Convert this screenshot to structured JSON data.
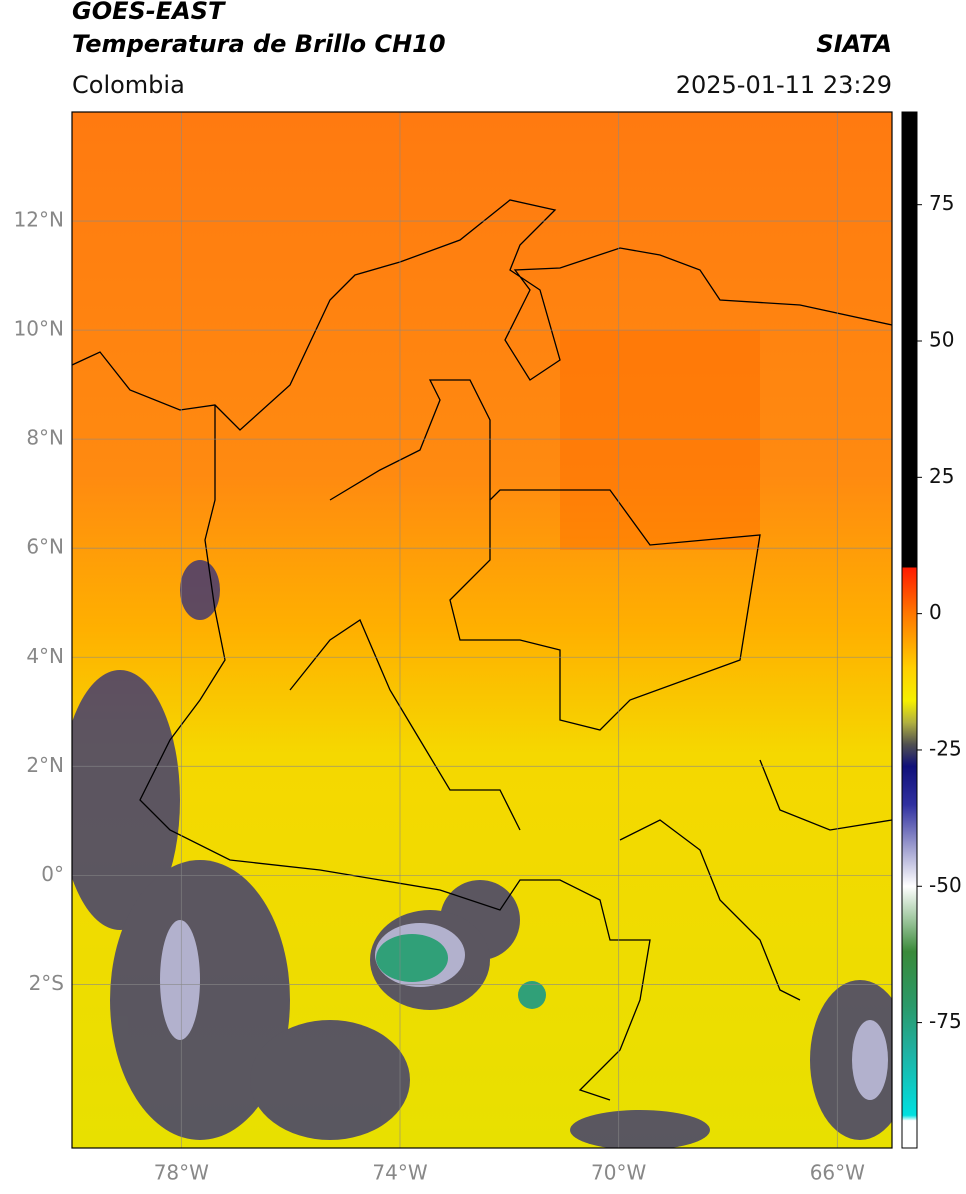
{
  "header": {
    "title": "GOES-EAST",
    "subtitle": "Temperatura de Brillo CH10",
    "source": "SIATA",
    "region": "Colombia",
    "datetime": "2025-01-11 23:29"
  },
  "map": {
    "xlim": [
      -80,
      -65
    ],
    "ylim": [
      -5,
      14
    ],
    "xticks": [
      {
        "value": -78,
        "label": "78°W"
      },
      {
        "value": -74,
        "label": "74°W"
      },
      {
        "value": -70,
        "label": "70°W"
      },
      {
        "value": -66,
        "label": "66°W"
      }
    ],
    "yticks": [
      {
        "value": 12,
        "label": "12°N"
      },
      {
        "value": 10,
        "label": "10°N"
      },
      {
        "value": 8,
        "label": "8°N"
      },
      {
        "value": 6,
        "label": "6°N"
      },
      {
        "value": 4,
        "label": "4°N"
      },
      {
        "value": 2,
        "label": "2°N"
      },
      {
        "value": 0,
        "label": "0°"
      },
      {
        "value": -2,
        "label": "2°S"
      }
    ],
    "grid": true
  },
  "colorbar": {
    "lim": [
      -98,
      92
    ],
    "ticks": [
      75,
      50,
      25,
      0,
      -25,
      -50,
      -75
    ],
    "colormap": [
      {
        "value": 92,
        "color": "#000000"
      },
      {
        "value": 8.5,
        "color": "#000000"
      },
      {
        "value": 8.5,
        "color": "#ff1a00"
      },
      {
        "value": 0,
        "color": "#ff7700"
      },
      {
        "value": -10,
        "color": "#ffd000"
      },
      {
        "value": -16,
        "color": "#f5f000"
      },
      {
        "value": -20,
        "color": "#b0b040"
      },
      {
        "value": -24,
        "color": "#505050"
      },
      {
        "value": -28,
        "color": "#10107a"
      },
      {
        "value": -35,
        "color": "#3030a0"
      },
      {
        "value": -43,
        "color": "#a0a0d0"
      },
      {
        "value": -50,
        "color": "#ffffff"
      },
      {
        "value": -56,
        "color": "#a0c8a0"
      },
      {
        "value": -62,
        "color": "#3a8a3a"
      },
      {
        "value": -72,
        "color": "#2a9a6a"
      },
      {
        "value": -80,
        "color": "#20b0a0"
      },
      {
        "value": -92,
        "color": "#00e0e0"
      },
      {
        "value": -93,
        "color": "#ffffff"
      },
      {
        "value": -98,
        "color": "#ffffff"
      }
    ]
  }
}
